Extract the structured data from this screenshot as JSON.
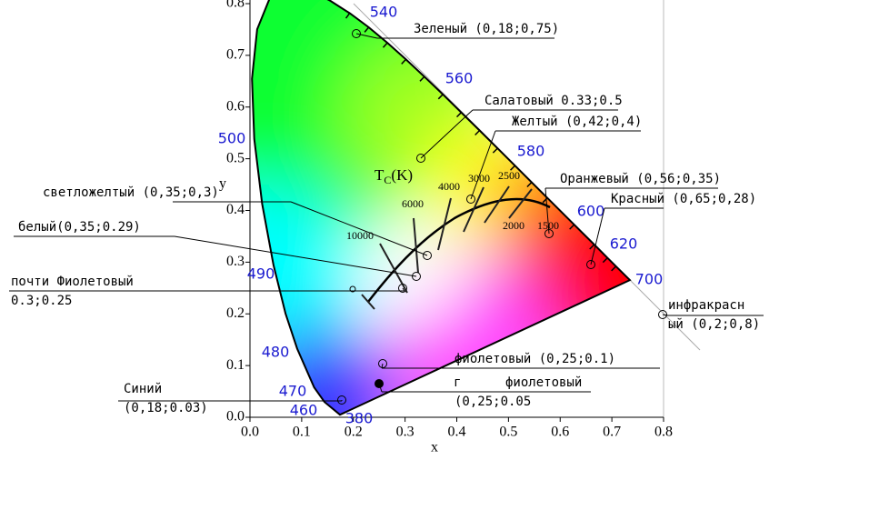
{
  "axes": {
    "x_label": "x",
    "y_label": "y",
    "x_ticks": [
      "0.0",
      "0.1",
      "0.2",
      "0.3",
      "0.4",
      "0.5",
      "0.6",
      "0.7",
      "0.8"
    ],
    "y_ticks": [
      "0.0",
      "0.1",
      "0.2",
      "0.3",
      "0.4",
      "0.5",
      "0.6",
      "0.7",
      "0.8"
    ]
  },
  "wavelengths": [
    "540",
    "560",
    "580",
    "600",
    "620",
    "700",
    "500",
    "490",
    "480",
    "470",
    "460",
    "380"
  ],
  "cct": {
    "label": "T",
    "label_sub": "C",
    "label_unit": "(K)",
    "temperatures": [
      "10000",
      "6000",
      "4000",
      "3000",
      "2500",
      "2000",
      "1500"
    ]
  },
  "annotations": [
    {
      "lines": [
        "Зеленый (0,18;0,75)"
      ]
    },
    {
      "lines": [
        "Салатовый 0.33;0.5"
      ]
    },
    {
      "lines": [
        "Желтый (0,42;0,4)"
      ]
    },
    {
      "lines": [
        "Оранжевый (0,56;0,35)"
      ]
    },
    {
      "lines": [
        "Красный (0,65;0,28)"
      ]
    },
    {
      "lines": [
        "светложелтый (0,35;0,3)"
      ]
    },
    {
      "lines": [
        "белый(0,35;0.29)"
      ]
    },
    {
      "lines": [
        "почти Фиолетовый",
        "0.3;0.25"
      ]
    },
    {
      "lines": [
        "фиолетовый (0,25;0.1)"
      ]
    },
    {
      "lines": [
        "г",
        "фиолетовый",
        "(0,25;0.05"
      ]
    },
    {
      "lines": [
        "Синий",
        "(0,18;0.03)"
      ]
    },
    {
      "lines": [
        "инфракрасн",
        "ый (0,2;0,8)"
      ]
    }
  ]
}
